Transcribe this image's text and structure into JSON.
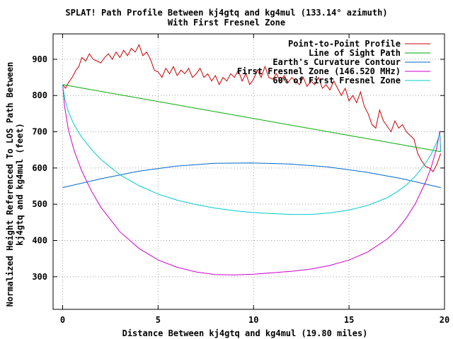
{
  "chart_data": {
    "type": "line",
    "title": "SPLAT! Path Profile Between kj4gtq and kg4mul (133.14° azimuth)",
    "subtitle": "With First Fresnel Zone",
    "xlabel": "Distance Between kj4gtq and kg4mul (19.80 miles)",
    "ylabel_line1": "Normalized Height Referenced To LOS Path Between",
    "ylabel_line2": "kj4gtq and kg4mul (feet)",
    "xlim": [
      -0.5,
      20
    ],
    "ylim": [
      210,
      970
    ],
    "grid": true,
    "legend_position": "top-right",
    "x_ticks": [
      0,
      5,
      10,
      15,
      20
    ],
    "y_ticks": [
      300,
      400,
      500,
      600,
      700,
      800,
      900
    ],
    "series": [
      {
        "name": "Point-to-Point Profile",
        "color": "#cc0000",
        "x": [
          0,
          0.15,
          0.3,
          0.5,
          0.7,
          0.85,
          1.0,
          1.2,
          1.4,
          1.6,
          1.8,
          2.0,
          2.2,
          2.4,
          2.6,
          2.8,
          3.0,
          3.2,
          3.4,
          3.6,
          3.8,
          4.0,
          4.2,
          4.4,
          4.6,
          4.8,
          5.0,
          5.2,
          5.4,
          5.6,
          5.8,
          6.0,
          6.2,
          6.4,
          6.6,
          6.8,
          7.0,
          7.2,
          7.4,
          7.6,
          7.8,
          8.0,
          8.2,
          8.4,
          8.6,
          8.8,
          9.0,
          9.2,
          9.4,
          9.6,
          9.8,
          10.0,
          10.2,
          10.4,
          10.6,
          10.8,
          11.0,
          11.2,
          11.4,
          11.6,
          11.8,
          12.0,
          12.2,
          12.4,
          12.6,
          12.8,
          13.0,
          13.2,
          13.4,
          13.6,
          13.8,
          14.0,
          14.2,
          14.4,
          14.6,
          14.8,
          15.0,
          15.2,
          15.4,
          15.6,
          15.8,
          16.0,
          16.2,
          16.4,
          16.6,
          16.8,
          17.0,
          17.2,
          17.4,
          17.6,
          17.8,
          18.0,
          18.2,
          18.4,
          18.6,
          18.8,
          19.0,
          19.2,
          19.4,
          19.6,
          19.8
        ],
        "values": [
          830,
          820,
          835,
          850,
          870,
          880,
          905,
          895,
          915,
          900,
          895,
          890,
          905,
          915,
          900,
          920,
          905,
          925,
          910,
          930,
          920,
          940,
          910,
          920,
          900,
          870,
          865,
          850,
          875,
          860,
          880,
          855,
          870,
          860,
          875,
          850,
          860,
          875,
          850,
          860,
          840,
          855,
          830,
          850,
          840,
          860,
          850,
          870,
          840,
          860,
          830,
          845,
          870,
          850,
          880,
          850,
          845,
          860,
          840,
          855,
          835,
          850,
          840,
          830,
          850,
          825,
          840,
          830,
          850,
          820,
          830,
          815,
          840,
          820,
          800,
          820,
          785,
          800,
          780,
          810,
          770,
          750,
          720,
          710,
          760,
          730,
          715,
          700,
          730,
          710,
          720,
          700,
          690,
          680,
          640,
          620,
          605,
          600,
          590,
          610,
          640
        ]
      },
      {
        "name": "Line of Sight Path",
        "color": "#00aa00",
        "x": [
          0,
          19.8
        ],
        "values": [
          830,
          645
        ]
      },
      {
        "name": "Earth's Curvature Contour",
        "color": "#0066cc",
        "x": [
          0,
          1.98,
          3.96,
          5.94,
          7.92,
          9.9,
          11.88,
          13.86,
          15.84,
          17.82,
          19.8
        ],
        "values": [
          546,
          570,
          591,
          605,
          613,
          614,
          611,
          603,
          589,
          570,
          546
        ]
      },
      {
        "name": "First Fresnel Zone (146.520 MHz)",
        "color": "#cc00cc",
        "x": [
          0,
          0.1,
          0.3,
          0.6,
          1.0,
          1.5,
          2.0,
          3.0,
          4.0,
          5.0,
          6.0,
          7.0,
          8.0,
          9.0,
          10.0,
          11.0,
          11.5,
          12.0,
          13.0,
          14.0,
          15.0,
          16.0,
          17.0,
          17.5,
          18.0,
          18.5,
          19.0,
          19.3,
          19.6,
          19.75,
          19.8
        ],
        "values": [
          830,
          770,
          706,
          648,
          592,
          537,
          492,
          424,
          378,
          346,
          326,
          313,
          306,
          305,
          307,
          311,
          313,
          315,
          321,
          331,
          346,
          369,
          404,
          429,
          462,
          504,
          560,
          601,
          657,
          702,
          645
        ]
      },
      {
        "name": "60% of First Fresnel Zone",
        "color": "#00cccc",
        "x": [
          0,
          0.1,
          0.3,
          0.6,
          1.0,
          1.5,
          2.0,
          3.0,
          4.0,
          5.0,
          6.0,
          7.0,
          8.0,
          9.0,
          10.0,
          11.0,
          12.0,
          13.0,
          14.0,
          15.0,
          16.0,
          17.0,
          17.5,
          18.0,
          18.5,
          19.0,
          19.3,
          19.6,
          19.75,
          19.8
        ],
        "values": [
          830,
          793,
          755,
          719,
          685,
          652,
          624,
          581,
          551,
          528,
          511,
          499,
          489,
          482,
          477,
          474,
          472,
          472,
          476,
          484,
          497,
          518,
          534,
          553,
          579,
          612,
          638,
          671,
          696,
          645
        ]
      }
    ]
  }
}
